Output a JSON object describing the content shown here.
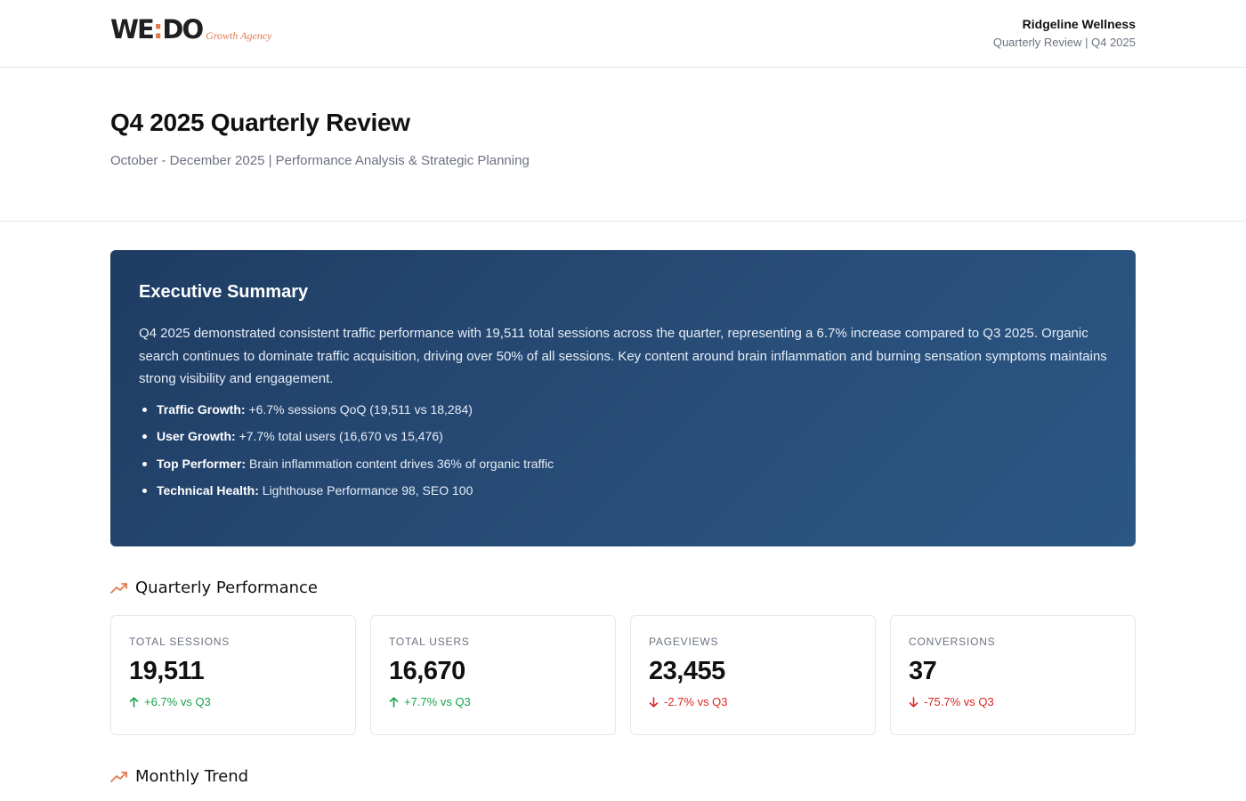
{
  "brand": {
    "logo_text_left": "WE",
    "logo_text_dot": ":",
    "logo_text_right": "DO",
    "tagline": "Growth Agency"
  },
  "client": {
    "name": "Ridgeline Wellness",
    "subtitle": "Quarterly Review | Q4 2025"
  },
  "hero": {
    "title": "Q4 2025 Quarterly Review",
    "subtitle": "October - December 2025 | Performance Analysis & Strategic Planning"
  },
  "executive_summary": {
    "title": "Executive Summary",
    "paragraph": "Q4 2025 demonstrated consistent traffic performance with 19,511 total sessions across the quarter, representing a 6.7% increase compared to Q3 2025. Organic search continues to dominate traffic acquisition, driving over 50% of all sessions. Key content around brain inflammation and burning sensation symptoms maintains strong visibility and engagement.",
    "bullets": [
      {
        "label": "Traffic Growth:",
        "text": " +6.7% sessions QoQ (19,511 vs 18,284)"
      },
      {
        "label": "User Growth:",
        "text": " +7.7% total users (16,670 vs 15,476)"
      },
      {
        "label": "Top Performer:",
        "text": " Brain inflammation content drives 36% of organic traffic"
      },
      {
        "label": "Technical Health:",
        "text": " Lighthouse Performance 98, SEO 100"
      }
    ]
  },
  "quarterly_performance": {
    "title": "Quarterly Performance",
    "icon": "trend-up-icon",
    "metrics": [
      {
        "label": "TOTAL SESSIONS",
        "value": "19,511",
        "delta": "+6.7% vs Q3",
        "direction": "up"
      },
      {
        "label": "TOTAL USERS",
        "value": "16,670",
        "delta": "+7.7% vs Q3",
        "direction": "up"
      },
      {
        "label": "PAGEVIEWS",
        "value": "23,455",
        "delta": "-2.7% vs Q3",
        "direction": "down"
      },
      {
        "label": "CONVERSIONS",
        "value": "37",
        "delta": "-75.7% vs Q3",
        "direction": "down"
      }
    ]
  },
  "monthly_trend": {
    "title": "Monthly Trend",
    "icon": "trend-up-icon"
  },
  "colors": {
    "accent": "#e07b4f",
    "summary_bg_start": "#1f3c63",
    "summary_bg_end": "#2b5785",
    "positive": "#16a34a",
    "negative": "#dc2626"
  }
}
